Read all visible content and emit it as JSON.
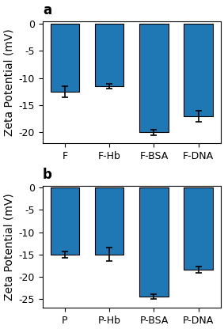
{
  "chart_data": [
    {
      "type": "bar",
      "title": "a",
      "categories": [
        "F",
        "F-Hb",
        "F-BSA",
        "F-DNA"
      ],
      "values": [
        -12.5,
        -11.5,
        -20.0,
        -17.0
      ],
      "errors": [
        1.0,
        0.5,
        0.5,
        1.0
      ],
      "y_label": "Zeta Potential (mV)",
      "ylim": [
        -22,
        0.5
      ],
      "yticks": [
        -20,
        -15,
        -10,
        -5,
        0
      ],
      "grid": false
    },
    {
      "type": "bar",
      "title": "b",
      "categories": [
        "P",
        "P-Hb",
        "P-BSA",
        "P-DNA"
      ],
      "values": [
        -15.0,
        -15.0,
        -24.5,
        -18.5
      ],
      "errors": [
        0.7,
        1.5,
        0.5,
        0.7
      ],
      "y_label": "Zeta Potential (mV)",
      "ylim": [
        -27,
        0.5
      ],
      "yticks": [
        -25,
        -20,
        -15,
        -10,
        -5,
        0
      ],
      "grid": false
    }
  ]
}
